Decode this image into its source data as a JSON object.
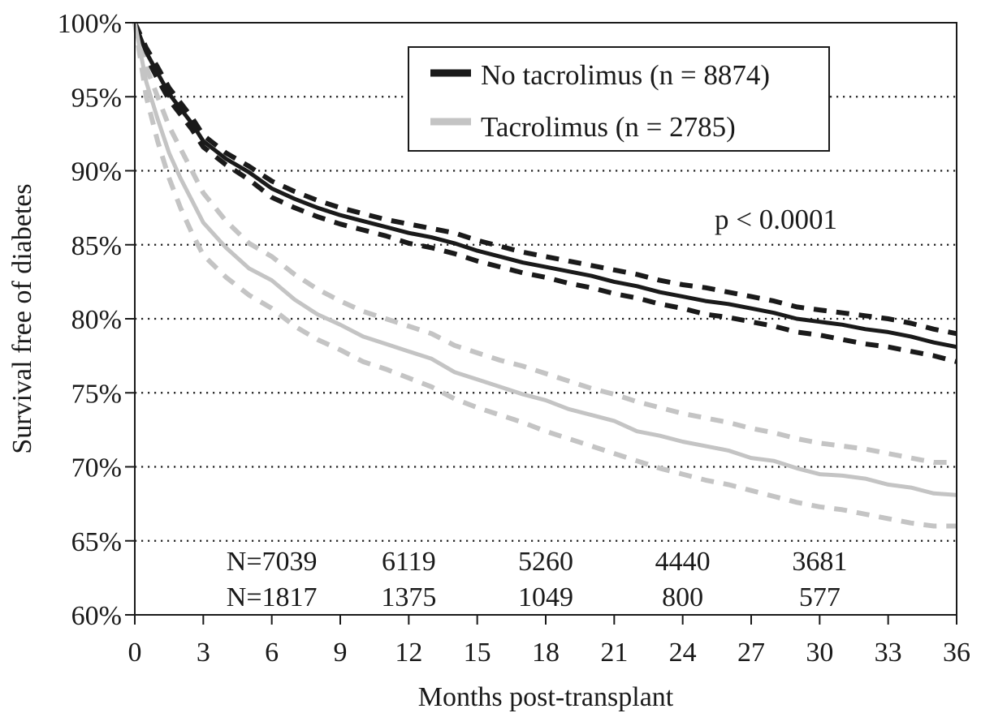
{
  "chart_data": {
    "type": "line",
    "ylabel": "Survival free of diabetes",
    "xlabel": "Months post-transplant",
    "xlim": [
      0,
      36
    ],
    "ylim": [
      60,
      100
    ],
    "x_ticks": [
      0,
      3,
      6,
      9,
      12,
      15,
      18,
      21,
      24,
      27,
      30,
      33,
      36
    ],
    "x_tick_labels": [
      "0",
      "3",
      "6",
      "9",
      "12",
      "15",
      "18",
      "21",
      "24",
      "27",
      "30",
      "33",
      "36"
    ],
    "y_ticks": [
      60,
      65,
      70,
      75,
      80,
      85,
      90,
      95,
      100
    ],
    "y_tick_labels": [
      "60%",
      "65%",
      "70%",
      "75%",
      "80%",
      "85%",
      "90%",
      "95%",
      "100%"
    ],
    "grid": "horizontal dotted",
    "legend_position": "top-right",
    "annotation": "p < 0.0001",
    "colors": {
      "no_tacrolimus": "#1a1a1a",
      "tacrolimus": "#c4c4c4",
      "grid": "#222222"
    },
    "series": [
      {
        "name": "No tacrolimus (n = 8874)",
        "x": [
          0,
          0.5,
          1,
          1.5,
          2,
          2.5,
          3,
          4,
          5,
          6,
          7,
          8,
          9,
          10,
          11,
          12,
          13,
          14,
          15,
          16,
          17,
          18,
          19,
          20,
          21,
          22,
          23,
          24,
          25,
          26,
          27,
          28,
          29,
          30,
          31,
          32,
          33,
          34,
          35,
          36
        ],
        "values": [
          100,
          98,
          96.6,
          95.2,
          94.2,
          93.2,
          92,
          90.8,
          89.9,
          88.8,
          88.1,
          87.5,
          87,
          86.6,
          86.2,
          85.8,
          85.5,
          85.1,
          84.6,
          84.2,
          83.8,
          83.5,
          83.2,
          82.9,
          82.5,
          82.2,
          81.8,
          81.5,
          81.2,
          81,
          80.7,
          80.4,
          80,
          79.8,
          79.6,
          79.3,
          79.1,
          78.8,
          78.4,
          78.1
        ],
        "ci_upper": [
          100,
          98.3,
          97,
          95.6,
          94.6,
          93.6,
          92.4,
          91.2,
          90.3,
          89.3,
          88.6,
          88,
          87.5,
          87.1,
          86.7,
          86.4,
          86.1,
          85.8,
          85.3,
          84.9,
          84.5,
          84.2,
          83.9,
          83.6,
          83.3,
          83,
          82.6,
          82.3,
          82.1,
          81.8,
          81.5,
          81.2,
          80.8,
          80.6,
          80.4,
          80.2,
          80,
          79.7,
          79.3,
          79
        ],
        "ci_lower": [
          100,
          97.7,
          96.2,
          94.8,
          93.8,
          92.8,
          91.6,
          90.4,
          89.4,
          88.2,
          87.5,
          86.9,
          86.4,
          86,
          85.6,
          85.1,
          84.8,
          84.4,
          83.9,
          83.5,
          83.1,
          82.8,
          82.4,
          82.1,
          81.7,
          81.4,
          81,
          80.7,
          80.3,
          80.1,
          79.8,
          79.5,
          79.1,
          78.9,
          78.6,
          78.3,
          78.1,
          77.8,
          77.5,
          77.1
        ]
      },
      {
        "name": "Tacrolimus (n = 2785)",
        "x": [
          0,
          0.5,
          1,
          1.5,
          2,
          2.5,
          3,
          4,
          5,
          6,
          7,
          8,
          9,
          10,
          11,
          12,
          13,
          14,
          15,
          16,
          17,
          18,
          19,
          20,
          21,
          22,
          23,
          24,
          25,
          26,
          27,
          28,
          29,
          30,
          31,
          32,
          33,
          34,
          35,
          36
        ],
        "values": [
          100,
          96,
          93.5,
          91.2,
          89.5,
          88,
          86.5,
          84.8,
          83.4,
          82.6,
          81.3,
          80.3,
          79.6,
          78.8,
          78.3,
          77.8,
          77.3,
          76.4,
          75.9,
          75.4,
          74.9,
          74.5,
          73.9,
          73.5,
          73.1,
          72.4,
          72.1,
          71.7,
          71.4,
          71.1,
          70.6,
          70.4,
          69.9,
          69.5,
          69.4,
          69.2,
          68.8,
          68.6,
          68.2,
          68.1
        ],
        "ci_upper": [
          100,
          97,
          95,
          93,
          91.5,
          90,
          88.5,
          86.6,
          85.1,
          84.2,
          83,
          82,
          81.2,
          80.5,
          80,
          79.5,
          79,
          78.2,
          77.7,
          77.2,
          76.8,
          76.3,
          75.8,
          75.3,
          74.9,
          74.4,
          74,
          73.6,
          73.3,
          73,
          72.6,
          72.3,
          71.9,
          71.6,
          71.4,
          71.2,
          70.9,
          70.6,
          70.3,
          70.3
        ],
        "ci_lower": [
          100,
          95,
          92,
          89.5,
          87.5,
          85.8,
          84.3,
          82.8,
          81.6,
          80.7,
          79.5,
          78.6,
          77.9,
          77.1,
          76.6,
          76,
          75.4,
          74.6,
          74,
          73.5,
          73,
          72.4,
          71.9,
          71.4,
          70.9,
          70.4,
          69.9,
          69.5,
          69.1,
          68.8,
          68.4,
          68,
          67.6,
          67.3,
          67.1,
          66.8,
          66.5,
          66.2,
          66,
          66
        ]
      }
    ],
    "at_risk": [
      {
        "prefix": "N=",
        "months": [
          6,
          12,
          18,
          24,
          30
        ],
        "counts": [
          "7039",
          "6119",
          "5260",
          "4440",
          "3681"
        ]
      },
      {
        "prefix": "N=",
        "months": [
          6,
          12,
          18,
          24,
          30
        ],
        "counts": [
          "1817",
          "1375",
          "1049",
          "800",
          "577"
        ]
      }
    ]
  }
}
